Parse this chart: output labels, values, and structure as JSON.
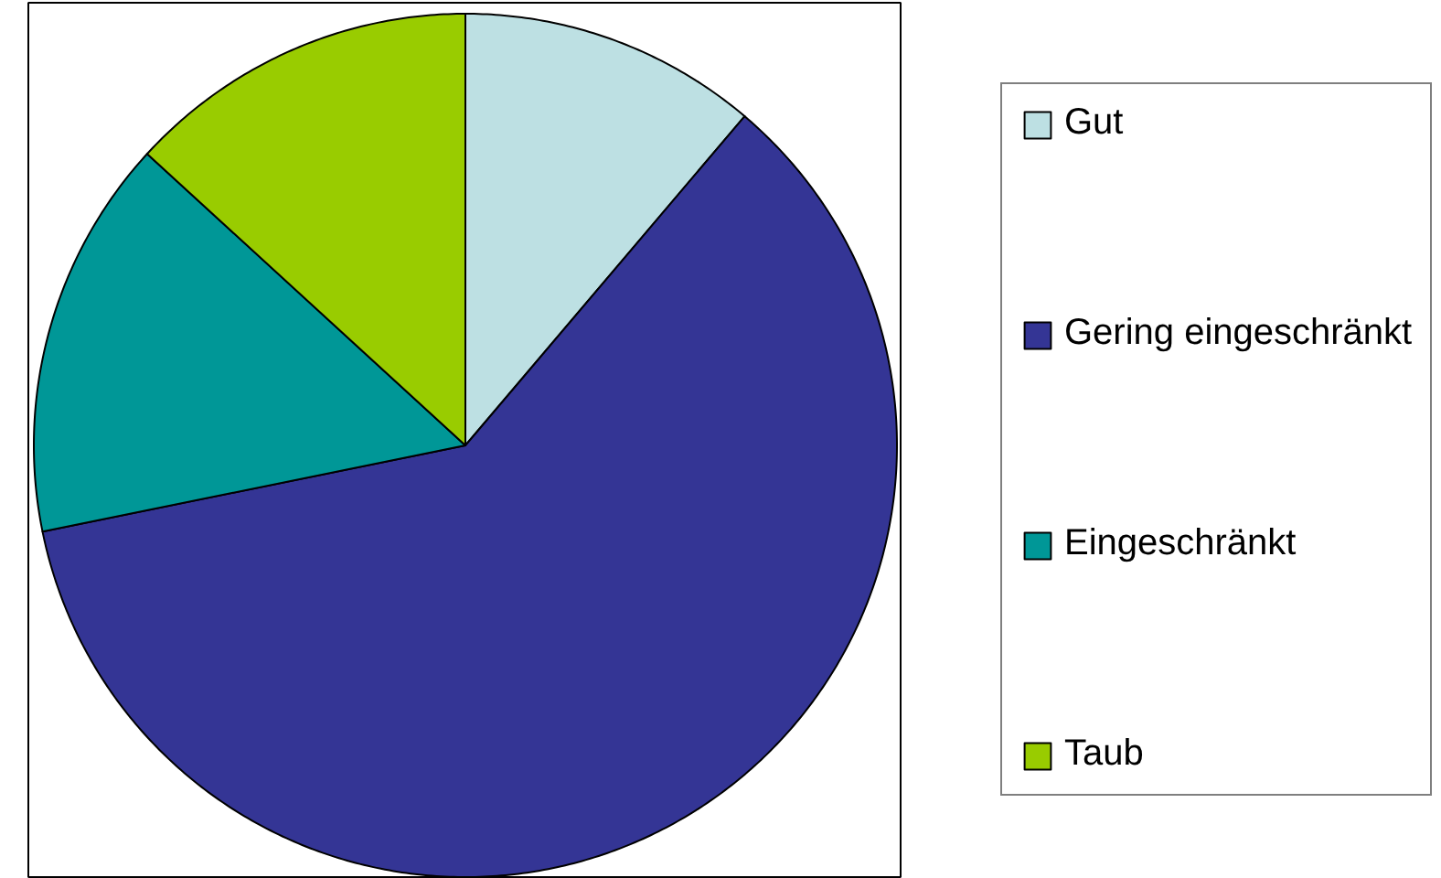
{
  "chart_data": {
    "type": "pie",
    "categories": [
      "Gut",
      "Gering eingeschränkt",
      "Eingeschränkt",
      "Taub"
    ],
    "values": [
      11.2,
      60.6,
      15.0,
      13.2
    ],
    "colors": [
      "#bde0e3",
      "#343595",
      "#009797",
      "#99cc00"
    ],
    "legend": "right"
  }
}
